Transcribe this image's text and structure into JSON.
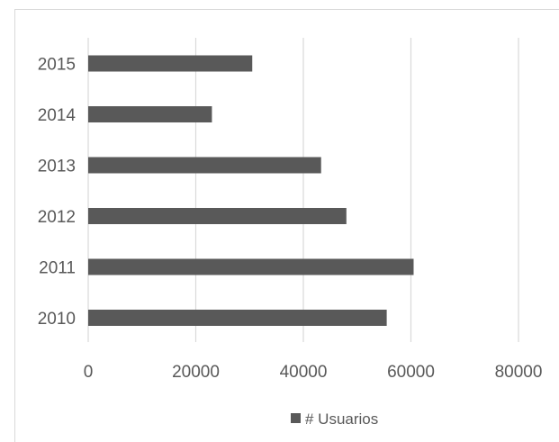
{
  "chart_data": {
    "type": "bar",
    "orientation": "horizontal",
    "categories": [
      "2010",
      "2011",
      "2012",
      "2013",
      "2014",
      "2015"
    ],
    "series": [
      {
        "name": "# Usuarios",
        "values": [
          55500,
          60500,
          48000,
          43300,
          23000,
          30500
        ]
      }
    ],
    "xlim": [
      0,
      80000
    ],
    "x_ticks": [
      "0",
      "20000",
      "40000",
      "60000",
      "80000"
    ],
    "grid": "vertical",
    "legend": "bottom",
    "colors": {
      "bar": "#595959",
      "grid": "#d9d9d9",
      "text": "#595959"
    }
  }
}
